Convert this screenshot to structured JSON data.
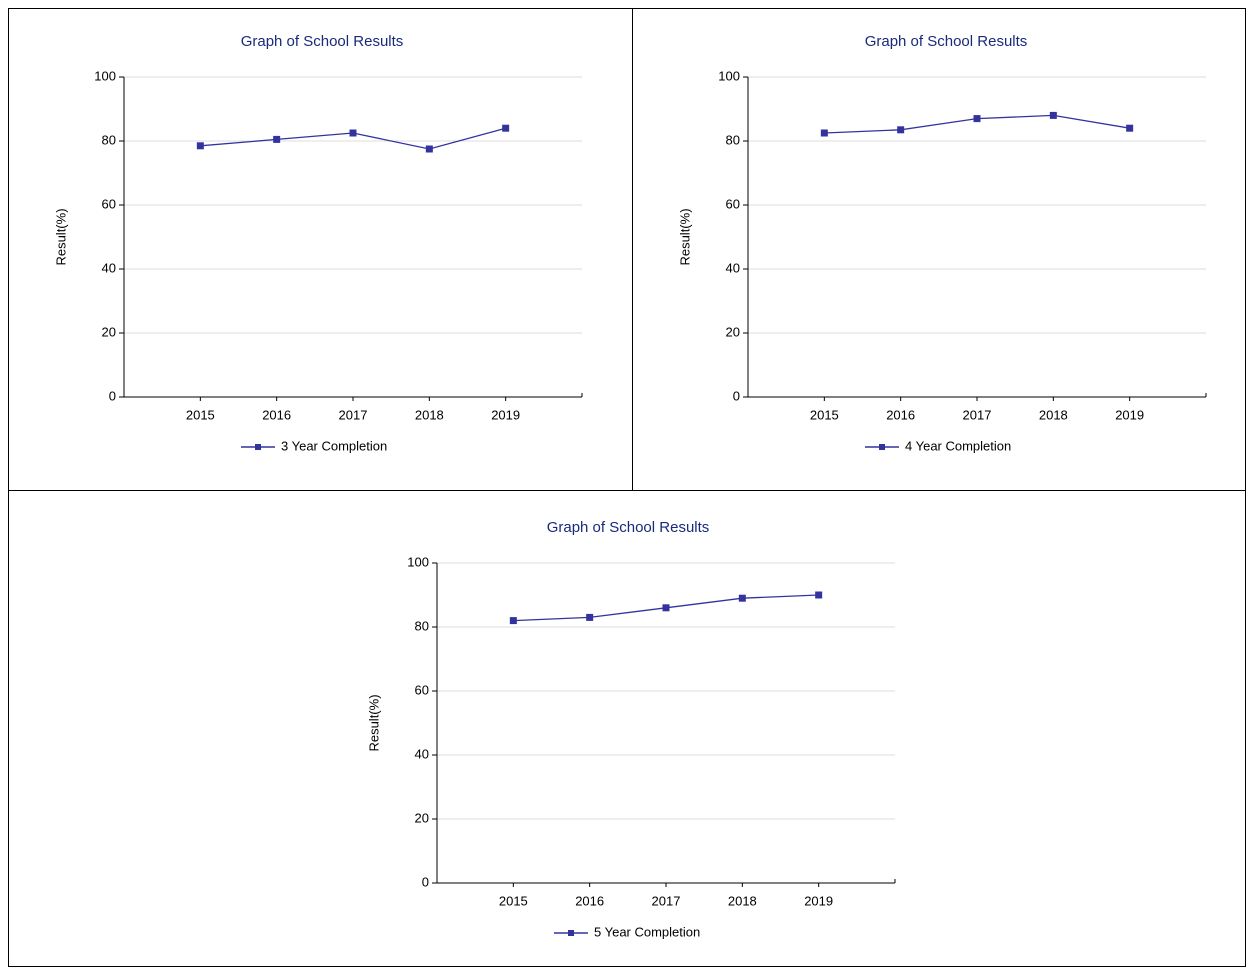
{
  "chart_data": [
    {
      "type": "line",
      "title": "Graph of School Results",
      "y_label": "Result(%)",
      "categories": [
        "2015",
        "2016",
        "2017",
        "2018",
        "2019"
      ],
      "series": [
        {
          "name": "3 Year Completion",
          "color": "#3333a0",
          "values": [
            78.5,
            80.5,
            82.5,
            77.5,
            84
          ]
        }
      ],
      "ylim": [
        0,
        100
      ],
      "yticks": [
        0,
        20,
        40,
        60,
        80,
        100
      ],
      "grid": true
    },
    {
      "type": "line",
      "title": "Graph of School Results",
      "y_label": "Result(%)",
      "categories": [
        "2015",
        "2016",
        "2017",
        "2018",
        "2019"
      ],
      "series": [
        {
          "name": "4 Year Completion",
          "color": "#3333a0",
          "values": [
            82.5,
            83.5,
            87,
            88,
            84
          ]
        }
      ],
      "ylim": [
        0,
        100
      ],
      "yticks": [
        0,
        20,
        40,
        60,
        80,
        100
      ],
      "grid": true
    },
    {
      "type": "line",
      "title": "Graph of School Results",
      "y_label": "Result(%)",
      "categories": [
        "2015",
        "2016",
        "2017",
        "2018",
        "2019"
      ],
      "series": [
        {
          "name": "5 Year Completion",
          "color": "#3333a0",
          "values": [
            82,
            83,
            86,
            89,
            90
          ]
        }
      ],
      "ylim": [
        0,
        100
      ],
      "yticks": [
        0,
        20,
        40,
        60,
        80,
        100
      ],
      "grid": true
    }
  ]
}
